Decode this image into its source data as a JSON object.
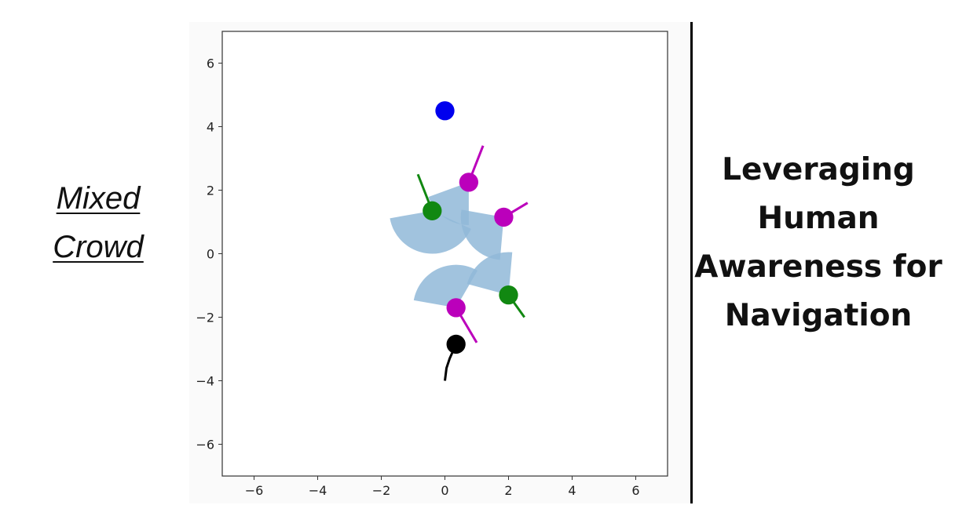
{
  "left_label": {
    "line1": "Mixed",
    "line2": "Crowd"
  },
  "right_title": {
    "line1": "Leveraging",
    "line2": "Human",
    "line3": "Awareness for",
    "line4": "Navigation"
  },
  "chart_data": {
    "type": "scatter",
    "xlim": [
      -7,
      7
    ],
    "ylim": [
      -7,
      7
    ],
    "xticks": [
      -6,
      -4,
      -2,
      0,
      2,
      4,
      6
    ],
    "yticks": [
      -6,
      -4,
      -2,
      0,
      2,
      4,
      6
    ],
    "xtick_labels": [
      "−6",
      "−4",
      "−2",
      "0",
      "2",
      "4",
      "6"
    ],
    "ytick_labels": [
      "−6",
      "−4",
      "−2",
      "0",
      "2",
      "4",
      "6"
    ],
    "grid": false,
    "goal": {
      "x": 0.0,
      "y": 4.5,
      "color": "#0000ee"
    },
    "robot": {
      "x": 0.35,
      "y": -2.85,
      "color": "#000000",
      "trail": [
        [
          0.0,
          -4.0
        ],
        [
          0.05,
          -3.6
        ],
        [
          0.15,
          -3.3
        ],
        [
          0.35,
          -2.85
        ]
      ]
    },
    "agents": [
      {
        "x": 0.75,
        "y": 2.25,
        "color": "#bb00bb",
        "heading": [
          1.2,
          3.4
        ],
        "fov": {
          "start_deg": 200,
          "end_deg": 270
        }
      },
      {
        "x": -0.4,
        "y": 1.35,
        "color": "#118811",
        "heading": [
          -0.85,
          2.5
        ],
        "fov": {
          "start_deg": 190,
          "end_deg": 335
        }
      },
      {
        "x": 1.85,
        "y": 1.15,
        "color": "#bb00bb",
        "heading": [
          2.6,
          1.6
        ],
        "fov": {
          "start_deg": 170,
          "end_deg": 265
        }
      },
      {
        "x": 2.0,
        "y": -1.3,
        "color": "#118811",
        "heading": [
          2.5,
          -2.0
        ],
        "fov": {
          "start_deg": 85,
          "end_deg": 165
        }
      },
      {
        "x": 0.35,
        "y": -1.7,
        "color": "#bb00bb",
        "heading": [
          1.0,
          -2.8
        ],
        "fov": {
          "start_deg": 60,
          "end_deg": 170
        }
      }
    ],
    "fov_color": "#90b8d8"
  }
}
